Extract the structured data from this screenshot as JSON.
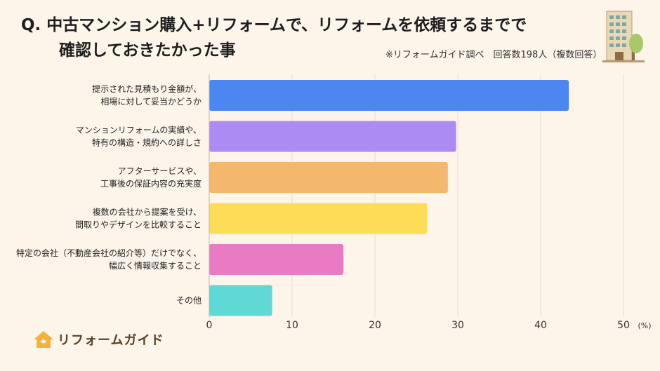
{
  "title": {
    "line1": "Q.  中古マンション購入+リフォームで、リフォームを依頼するまでで",
    "line2": "確認しておきたかった事"
  },
  "note": "※リフォームガイド調べ　回答数198人（複数回答）",
  "logo_text": "リフォームガイド",
  "colors": {
    "background": "#fdf4ea",
    "logo_house": "#f3b23c"
  },
  "chart_data": {
    "type": "bar",
    "orientation": "horizontal",
    "categories": [
      [
        "提示された見積もり金額が、",
        "相場に対して妥当かどうか"
      ],
      [
        "マンションリフォームの実績や、",
        "特有の構造・規約への詳しさ"
      ],
      [
        "アフターサービスや、",
        "工事後の保証内容の充実度"
      ],
      [
        "複数の会社から提案を受け、",
        "間取りやデザインを比較すること"
      ],
      [
        "特定の会社（不動産会社の紹介等）だけでなく、",
        "幅広く情報収集すること"
      ],
      [
        "その他"
      ]
    ],
    "values": [
      43.4,
      29.8,
      28.8,
      26.3,
      16.2,
      7.6
    ],
    "bar_colors": [
      "#4c86f0",
      "#ac8cf2",
      "#f3b76e",
      "#fddc58",
      "#e97ac4",
      "#5fd8d6"
    ],
    "xticks": [
      0,
      10,
      20,
      30,
      40,
      50
    ],
    "xlim": [
      0,
      50
    ],
    "unit_label": "(%)",
    "grid": true
  }
}
